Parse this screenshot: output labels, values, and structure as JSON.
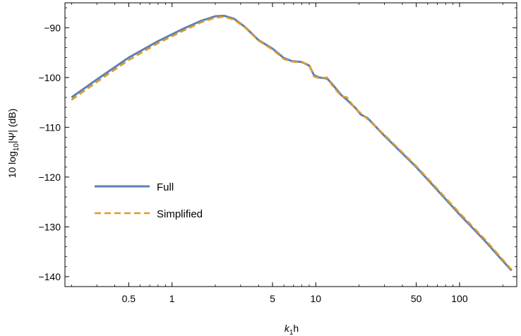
{
  "chart_data": {
    "type": "line",
    "title": "",
    "xlabel": "k1h",
    "xlabel_parts": {
      "main": "k",
      "sub": "1",
      "suffix": "h"
    },
    "ylabel_parts": {
      "prefix": "10 log",
      "sub": "10",
      "suffix": "|Ψ| (dB)"
    },
    "xscale": "log",
    "xlim": [
      0.18,
      250
    ],
    "ylim": [
      -142,
      -85
    ],
    "xticks": [
      {
        "value": 0.5,
        "label": "0.5"
      },
      {
        "value": 1,
        "label": "1"
      },
      {
        "value": 5,
        "label": "5"
      },
      {
        "value": 10,
        "label": "10"
      },
      {
        "value": 50,
        "label": "50"
      },
      {
        "value": 100,
        "label": "100"
      }
    ],
    "yticks": [
      {
        "value": -90,
        "label": "−90"
      },
      {
        "value": -100,
        "label": "−100"
      },
      {
        "value": -110,
        "label": "−110"
      },
      {
        "value": -120,
        "label": "−120"
      },
      {
        "value": -130,
        "label": "−130"
      },
      {
        "value": -140,
        "label": "−140"
      }
    ],
    "legend_position": "left",
    "series": [
      {
        "name": "Full",
        "color": "#5E81B5",
        "style": "solid",
        "x": [
          0.2,
          0.3,
          0.5,
          0.8,
          1.2,
          1.6,
          2.0,
          2.3,
          2.7,
          3.2,
          4.0,
          5.0,
          6.0,
          6.8,
          8.0,
          9.0,
          9.7,
          10.5,
          12.0,
          13.0,
          15.0,
          16.5,
          19.0,
          20.5,
          23.0,
          30.0,
          50.0,
          100.0,
          150.0,
          230.0
        ],
        "y": [
          -104.0,
          -100.4,
          -96.0,
          -92.7,
          -90.2,
          -88.6,
          -87.7,
          -87.6,
          -88.2,
          -89.8,
          -92.5,
          -94.2,
          -96.1,
          -96.7,
          -96.9,
          -97.6,
          -99.5,
          -100.0,
          -100.2,
          -101.3,
          -103.5,
          -104.5,
          -106.2,
          -107.4,
          -108.2,
          -111.7,
          -118.0,
          -127.5,
          -132.8,
          -138.8
        ]
      },
      {
        "name": "Simplified",
        "color": "#E19C24",
        "style": "dashed",
        "x": [
          0.2,
          0.3,
          0.5,
          0.8,
          1.2,
          1.6,
          2.0,
          2.3,
          2.7,
          3.2,
          4.0,
          5.0,
          6.0,
          6.8,
          8.0,
          9.0,
          9.7,
          10.5,
          12.0,
          13.0,
          15.0,
          16.5,
          19.0,
          20.5,
          23.0,
          30.0,
          50.0,
          100.0,
          150.0,
          230.0
        ],
        "y": [
          -104.5,
          -100.9,
          -96.5,
          -93.1,
          -90.6,
          -88.9,
          -88.0,
          -87.8,
          -88.4,
          -89.9,
          -92.6,
          -94.4,
          -96.3,
          -96.8,
          -97.0,
          -97.4,
          -99.8,
          -100.1,
          -100.0,
          -101.6,
          -103.7,
          -104.0,
          -106.4,
          -107.1,
          -108.4,
          -111.5,
          -117.8,
          -127.2,
          -132.5,
          -138.6
        ]
      }
    ]
  }
}
